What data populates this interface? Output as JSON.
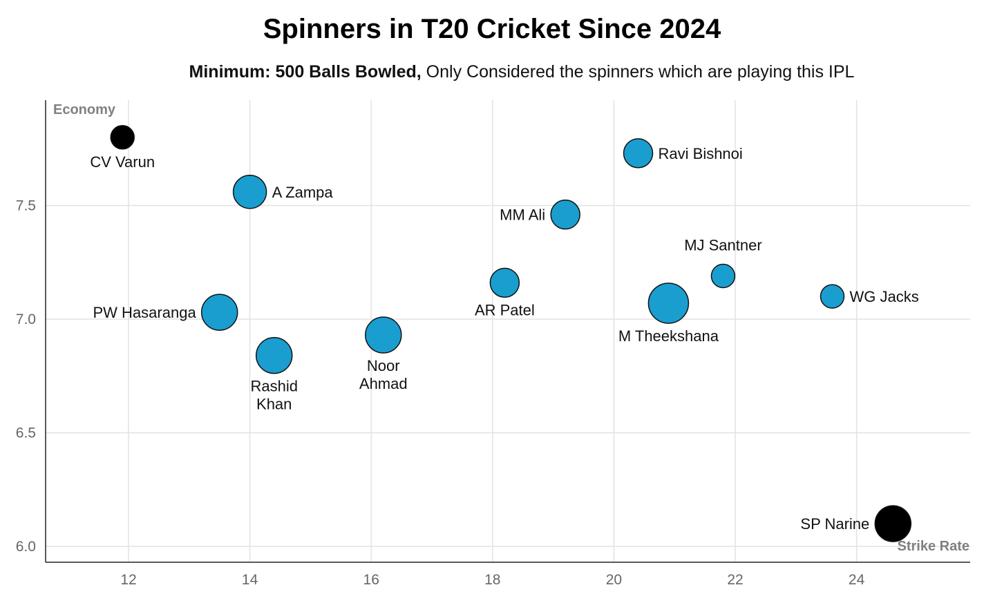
{
  "chart_data": {
    "type": "scatter",
    "title": "Spinners in T20 Cricket Since 2024",
    "subtitle_bold": "Minimum: 500 Balls Bowled,",
    "subtitle_rest": " Only Considered the spinners which are playing this IPL",
    "xlabel": "Strike Rate",
    "ylabel": "Economy",
    "xlim": [
      10.6,
      25.8
    ],
    "ylim": [
      5.93,
      7.95
    ],
    "xticks": [
      12,
      14,
      16,
      18,
      20,
      22,
      24
    ],
    "yticks": [
      "6.0",
      "6.5",
      "7.0",
      "7.5"
    ],
    "grid": true,
    "colors": {
      "highlight": "#000000",
      "default": "#1a9ecf",
      "grid": "#e2e2e2",
      "outline": "#111111"
    },
    "points": [
      {
        "name": "CV Varun",
        "lines": [
          "CV Varun"
        ],
        "x": 11.9,
        "y": 7.8,
        "size": 1,
        "color": "#000000",
        "label_pos": "below"
      },
      {
        "name": "A Zampa",
        "lines": [
          "A Zampa"
        ],
        "x": 14.0,
        "y": 7.56,
        "size": 3,
        "color": "#1a9ecf",
        "label_pos": "right"
      },
      {
        "name": "Ravi Bishnoi",
        "lines": [
          "Ravi Bishnoi"
        ],
        "x": 20.4,
        "y": 7.73,
        "size": 2,
        "color": "#1a9ecf",
        "label_pos": "right"
      },
      {
        "name": "MM Ali",
        "lines": [
          "MM Ali"
        ],
        "x": 19.2,
        "y": 7.46,
        "size": 2,
        "color": "#1a9ecf",
        "label_pos": "left"
      },
      {
        "name": "MJ Santner",
        "lines": [
          "MJ Santner"
        ],
        "x": 21.8,
        "y": 7.19,
        "size": 1,
        "color": "#1a9ecf",
        "label_pos": "above"
      },
      {
        "name": "WG Jacks",
        "lines": [
          "WG Jacks"
        ],
        "x": 23.6,
        "y": 7.1,
        "size": 1,
        "color": "#1a9ecf",
        "label_pos": "right"
      },
      {
        "name": "AR Patel",
        "lines": [
          "AR Patel"
        ],
        "x": 18.2,
        "y": 7.16,
        "size": 2,
        "color": "#1a9ecf",
        "label_pos": "below"
      },
      {
        "name": "M Theekshana",
        "lines": [
          "M Theekshana"
        ],
        "x": 20.9,
        "y": 7.07,
        "size": 5,
        "color": "#1a9ecf",
        "label_pos": "below"
      },
      {
        "name": "PW Hasaranga",
        "lines": [
          "PW Hasaranga"
        ],
        "x": 13.5,
        "y": 7.03,
        "size": 4,
        "color": "#1a9ecf",
        "label_pos": "left"
      },
      {
        "name": "Rashid Khan",
        "lines": [
          "Rashid",
          "Khan"
        ],
        "x": 14.4,
        "y": 6.84,
        "size": 4,
        "color": "#1a9ecf",
        "label_pos": "below"
      },
      {
        "name": "Noor Ahmad",
        "lines": [
          "Noor",
          "Ahmad"
        ],
        "x": 16.2,
        "y": 6.93,
        "size": 4,
        "color": "#1a9ecf",
        "label_pos": "below"
      },
      {
        "name": "SP Narine",
        "lines": [
          "SP Narine"
        ],
        "x": 24.6,
        "y": 6.1,
        "size": 4,
        "color": "#000000",
        "label_pos": "left"
      }
    ]
  }
}
